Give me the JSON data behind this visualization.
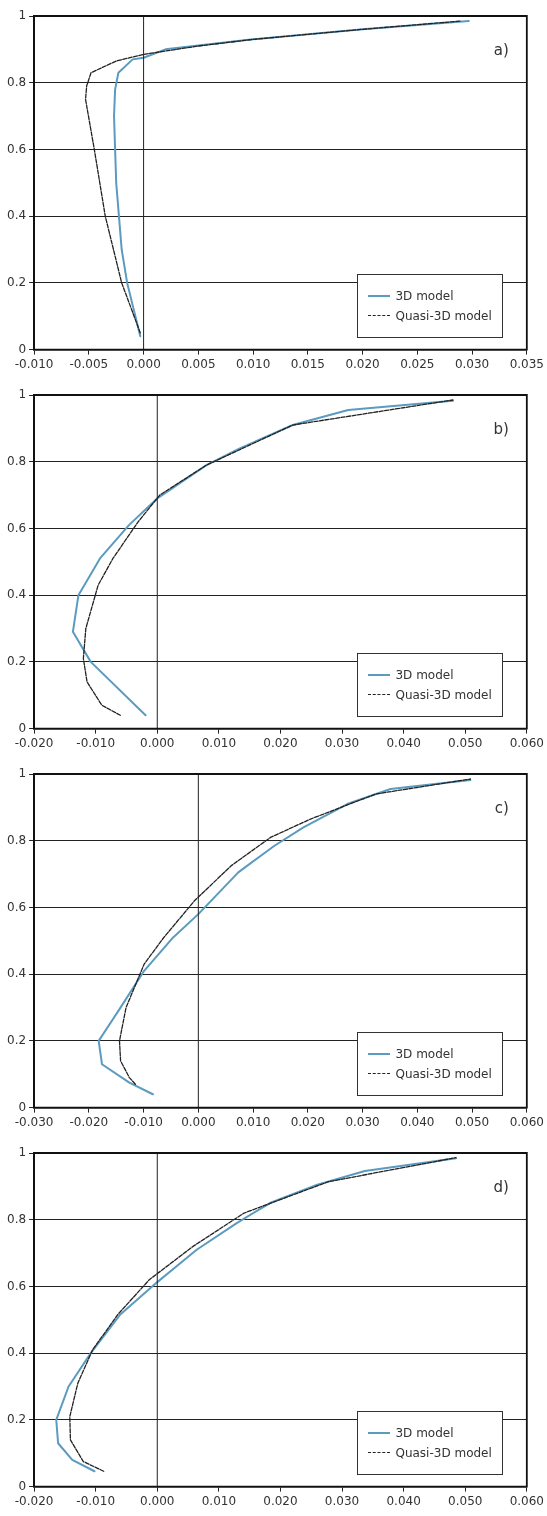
{
  "chart_data": [
    {
      "type": "line",
      "annotations": [
        "a)"
      ],
      "xlim": [
        -0.01,
        0.035
      ],
      "xticks": [
        {
          "value": -0.01,
          "label": "-0.010"
        },
        {
          "value": -0.005,
          "label": "-0.005"
        },
        {
          "value": 0,
          "label": "0.000"
        },
        {
          "value": 0.005,
          "label": "0.005"
        },
        {
          "value": 0.01,
          "label": "0.010"
        },
        {
          "value": 0.015,
          "label": "0.015"
        },
        {
          "value": 0.02,
          "label": "0.020"
        },
        {
          "value": 0.025,
          "label": "0.025"
        },
        {
          "value": 0.03,
          "label": "0.030"
        },
        {
          "value": 0.035,
          "label": "0.035"
        }
      ],
      "ylim": [
        0,
        1
      ],
      "yticks": [
        0,
        0.2,
        0.4,
        0.6,
        0.8,
        1
      ],
      "grid": "y",
      "legend": "bottom right",
      "ref_lines": [
        {
          "axis": "x",
          "value": 0
        }
      ],
      "series": [
        {
          "name": "3D model",
          "color": "#5b9bc0",
          "line_style": "solid",
          "x": [
            -0.0003,
            -0.0015,
            -0.002,
            -0.0025,
            -0.0027,
            -0.0026,
            -0.0023,
            -0.001,
            0,
            0.002,
            0.01,
            0.02,
            0.0297
          ],
          "values": [
            0.04,
            0.2,
            0.3,
            0.5,
            0.7,
            0.78,
            0.83,
            0.87,
            0.875,
            0.9,
            0.93,
            0.96,
            0.985
          ]
        },
        {
          "name": "Quasi-3D model",
          "color": "#222222",
          "line_style": "dashed",
          "x": [
            -0.0003,
            -0.002,
            -0.0035,
            -0.0045,
            -0.0053,
            -0.0052,
            -0.0048,
            -0.0025,
            0,
            0.005,
            0.01,
            0.02,
            0.029
          ],
          "values": [
            0.05,
            0.2,
            0.4,
            0.6,
            0.75,
            0.79,
            0.83,
            0.865,
            0.885,
            0.91,
            0.93,
            0.96,
            0.985
          ]
        }
      ]
    },
    {
      "type": "line",
      "annotations": [
        "b)"
      ],
      "xlim": [
        -0.02,
        0.06
      ],
      "xticks": [
        {
          "value": -0.02,
          "label": "-0.020"
        },
        {
          "value": -0.01,
          "label": "-0.010"
        },
        {
          "value": 0,
          "label": "0.000"
        },
        {
          "value": 0.01,
          "label": "0.010"
        },
        {
          "value": 0.02,
          "label": "0.020"
        },
        {
          "value": 0.03,
          "label": "0.030"
        },
        {
          "value": 0.04,
          "label": "0.040"
        },
        {
          "value": 0.05,
          "label": "0.050"
        },
        {
          "value": 0.06,
          "label": "0.060"
        }
      ],
      "ylim": [
        0,
        1
      ],
      "yticks": [
        0,
        0.2,
        0.4,
        0.6,
        0.8,
        1
      ],
      "grid": "y",
      "legend": "bottom right",
      "ref_lines": [
        {
          "axis": "x",
          "value": 0
        }
      ],
      "series": [
        {
          "name": "3D model",
          "color": "#5b9bc0",
          "line_style": "solid",
          "x": [
            -0.0019,
            -0.0108,
            -0.0137,
            -0.0128,
            -0.0093,
            -0.0046,
            0,
            0.008,
            0.0134,
            0.022,
            0.031,
            0.048
          ],
          "values": [
            0.04,
            0.2,
            0.29,
            0.4,
            0.51,
            0.61,
            0.69,
            0.79,
            0.84,
            0.91,
            0.955,
            0.983
          ]
        },
        {
          "name": "Quasi-3D model",
          "color": "#222222",
          "line_style": "dashed",
          "x": [
            -0.006,
            -0.009,
            -0.0114,
            -0.012,
            -0.0116,
            -0.0096,
            -0.0072,
            -0.0031,
            0.0004,
            0.008,
            0.022,
            0.048
          ],
          "values": [
            0.04,
            0.07,
            0.14,
            0.21,
            0.3,
            0.43,
            0.51,
            0.62,
            0.7,
            0.79,
            0.91,
            0.985
          ]
        }
      ]
    },
    {
      "type": "line",
      "annotations": [
        "c)"
      ],
      "xlim": [
        -0.03,
        0.06
      ],
      "xticks": [
        {
          "value": -0.03,
          "label": "-0.030"
        },
        {
          "value": -0.02,
          "label": "-0.020"
        },
        {
          "value": -0.01,
          "label": "-0.010"
        },
        {
          "value": 0,
          "label": "0.000"
        },
        {
          "value": 0.01,
          "label": "0.010"
        },
        {
          "value": 0.02,
          "label": "0.020"
        },
        {
          "value": 0.03,
          "label": "0.030"
        },
        {
          "value": 0.04,
          "label": "0.040"
        },
        {
          "value": 0.05,
          "label": "0.050"
        },
        {
          "value": 0.06,
          "label": "0.060"
        }
      ],
      "ylim": [
        0,
        1
      ],
      "yticks": [
        0,
        0.2,
        0.4,
        0.6,
        0.8,
        1
      ],
      "grid": "y",
      "legend": "bottom right",
      "ref_lines": [
        {
          "axis": "x",
          "value": 0
        }
      ],
      "series": [
        {
          "name": "3D model",
          "color": "#5b9bc0",
          "line_style": "solid",
          "x": [
            -0.0083,
            -0.0126,
            -0.0176,
            -0.0182,
            -0.0146,
            -0.0099,
            -0.0046,
            0,
            0.0073,
            0.0139,
            0.0192,
            0.0272,
            0.0351,
            0.0497
          ],
          "values": [
            0.04,
            0.075,
            0.13,
            0.2,
            0.29,
            0.41,
            0.51,
            0.58,
            0.705,
            0.785,
            0.84,
            0.91,
            0.955,
            0.982
          ]
        },
        {
          "name": "Quasi-3D model",
          "color": "#222222",
          "line_style": "dashed",
          "x": [
            -0.0115,
            -0.0126,
            -0.0142,
            -0.0144,
            -0.0132,
            -0.0099,
            -0.0063,
            -0.0007,
            0.006,
            0.0132,
            0.0205,
            0.0324,
            0.0497
          ],
          "values": [
            0.07,
            0.09,
            0.14,
            0.2,
            0.3,
            0.43,
            0.51,
            0.62,
            0.725,
            0.81,
            0.865,
            0.94,
            0.985
          ]
        }
      ]
    },
    {
      "type": "line",
      "annotations": [
        "d)"
      ],
      "xlim": [
        -0.02,
        0.06
      ],
      "xticks": [
        {
          "value": -0.02,
          "label": "-0.020"
        },
        {
          "value": -0.01,
          "label": "-0.010"
        },
        {
          "value": 0,
          "label": "0.000"
        },
        {
          "value": 0.01,
          "label": "0.010"
        },
        {
          "value": 0.02,
          "label": "0.020"
        },
        {
          "value": 0.03,
          "label": "0.030"
        },
        {
          "value": 0.04,
          "label": "0.040"
        },
        {
          "value": 0.05,
          "label": "0.050"
        },
        {
          "value": 0.06,
          "label": "0.060"
        }
      ],
      "ylim": [
        0,
        1
      ],
      "yticks": [
        0,
        0.2,
        0.4,
        0.6,
        0.8,
        1
      ],
      "grid": "y",
      "legend": "bottom right",
      "ref_lines": [
        {
          "axis": "x",
          "value": 0
        }
      ],
      "series": [
        {
          "name": "3D model",
          "color": "#5b9bc0",
          "line_style": "solid",
          "x": [
            -0.0102,
            -0.0138,
            -0.0161,
            -0.0164,
            -0.0144,
            -0.0108,
            -0.006,
            0,
            0.0064,
            0.0129,
            0.0183,
            0.026,
            0.0337,
            0.0485
          ],
          "values": [
            0.046,
            0.08,
            0.13,
            0.2,
            0.3,
            0.4,
            0.516,
            0.613,
            0.71,
            0.79,
            0.85,
            0.905,
            0.946,
            0.984
          ]
        },
        {
          "name": "Quasi-3D model",
          "color": "#222222",
          "line_style": "dashed",
          "x": [
            -0.0087,
            -0.012,
            -0.0141,
            -0.0142,
            -0.0129,
            -0.0105,
            -0.0064,
            -0.0013,
            0.0058,
            0.0141,
            0.0278,
            0.0485
          ],
          "values": [
            0.046,
            0.075,
            0.14,
            0.21,
            0.31,
            0.41,
            0.516,
            0.62,
            0.72,
            0.82,
            0.914,
            0.986
          ]
        }
      ]
    }
  ]
}
